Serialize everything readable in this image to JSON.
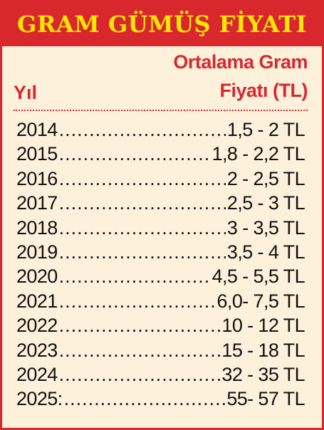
{
  "banner": {
    "title": "GRAM GÜMÜŞ FİYATI"
  },
  "header": {
    "year_label": "Yıl",
    "price_label_line1": "Ortalama Gram",
    "price_label_line2": "Fiyatı (TL)"
  },
  "rows": [
    {
      "year": "2014",
      "price": "1,5 - 2 TL"
    },
    {
      "year": "2015",
      "price": "1,8 - 2,2 TL"
    },
    {
      "year": "2016",
      "price": "2 - 2,5 TL"
    },
    {
      "year": "2017",
      "price": "2,5 - 3 TL"
    },
    {
      "year": "2018",
      "price": "3 - 3,5 TL"
    },
    {
      "year": "2019",
      "price": "3,5 - 4 TL"
    },
    {
      "year": "2020",
      "price": "4,5 - 5,5 TL"
    },
    {
      "year": "2021",
      "price": "6,0- 7,5 TL"
    },
    {
      "year": "2022",
      "price": "10 - 12 TL"
    },
    {
      "year": "2023",
      "price": "15 - 18 TL"
    },
    {
      "year": "2024",
      "price": "32 - 35 TL"
    },
    {
      "year": "2025:",
      "price": "55- 57 TL"
    }
  ],
  "colors": {
    "accent": "#d8282e",
    "title": "#ffe600",
    "background": "#fdf1dc"
  }
}
